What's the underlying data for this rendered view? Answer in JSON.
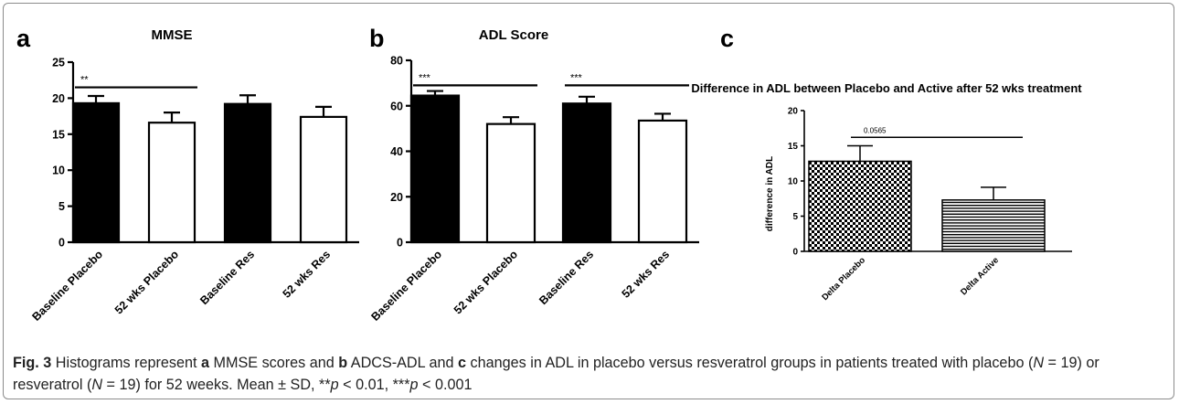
{
  "panels": [
    {
      "letter": "a",
      "title": "MMSE",
      "ticks": [
        "0",
        "5",
        "10",
        "15",
        "20",
        "25"
      ],
      "significance": [
        "**"
      ]
    },
    {
      "letter": "b",
      "title": "ADL Score",
      "ticks": [
        "0",
        "20",
        "40",
        "60",
        "80"
      ],
      "significance": [
        "***",
        "***"
      ]
    },
    {
      "letter": "c",
      "title": "Difference in ADL between Placebo and Active after 52 wks treatment",
      "ylabel": "difference in ADL",
      "ticks": [
        "0",
        "5",
        "10",
        "15",
        "20"
      ],
      "significance": [
        "0.0565"
      ]
    }
  ],
  "caption": {
    "fig_label": "Fig. 3",
    "t1": " Histograms represent ",
    "a": "a",
    "t2": " MMSE scores and ",
    "b": "b",
    "t3": " ADCS-ADL and ",
    "c": "c",
    "t4": " changes in ADL in placebo versus resveratrol groups in patients treated with placebo (",
    "n1": "N",
    "t5": " = 19) or resveratrol (",
    "n2": "N",
    "t6": " = 19) for 52 weeks. Mean ± SD, **",
    "p1": "p",
    "t7": " < 0.01, ***",
    "p2": "p",
    "t8": " < 0.001"
  },
  "chart_data": [
    {
      "type": "bar",
      "title": "MMSE",
      "categories": [
        "Baseline Placebo",
        "52 wks Placebo",
        "Baseline Res",
        "52 wks Res"
      ],
      "values": [
        19.3,
        16.6,
        19.2,
        17.4
      ],
      "errors": [
        1.0,
        1.4,
        1.2,
        1.4
      ],
      "fills": [
        "black",
        "white",
        "black",
        "white"
      ],
      "ylim": [
        0,
        25
      ],
      "yticks": [
        0,
        5,
        10,
        15,
        20,
        25
      ],
      "significance": [
        {
          "from": 0,
          "to": 1,
          "label": "**"
        }
      ]
    },
    {
      "type": "bar",
      "title": "ADL Score",
      "categories": [
        "Baseline Placebo",
        "52 wks Placebo",
        "Baseline Res",
        "52 wks Res"
      ],
      "values": [
        64.5,
        52.0,
        61.0,
        53.5
      ],
      "errors": [
        2.0,
        3.0,
        3.0,
        3.0
      ],
      "fills": [
        "black",
        "white",
        "black",
        "white"
      ],
      "ylim": [
        0,
        80
      ],
      "yticks": [
        0,
        20,
        40,
        60,
        80
      ],
      "significance": [
        {
          "from": 0,
          "to": 1,
          "label": "***"
        },
        {
          "from": 2,
          "to": 3,
          "label": "***"
        }
      ]
    },
    {
      "type": "bar",
      "title": "Difference in ADL between Placebo and Active after 52 wks treatment",
      "ylabel": "difference in ADL",
      "categories": [
        "Delta Placebo",
        "Delta Active"
      ],
      "values": [
        12.8,
        7.3
      ],
      "errors": [
        2.2,
        1.8
      ],
      "fills": [
        "checkered",
        "horizontal-lines"
      ],
      "ylim": [
        0,
        20
      ],
      "yticks": [
        0,
        5,
        10,
        15,
        20
      ],
      "significance": [
        {
          "from": 0,
          "to": 1,
          "label": "0.0565"
        }
      ]
    }
  ]
}
